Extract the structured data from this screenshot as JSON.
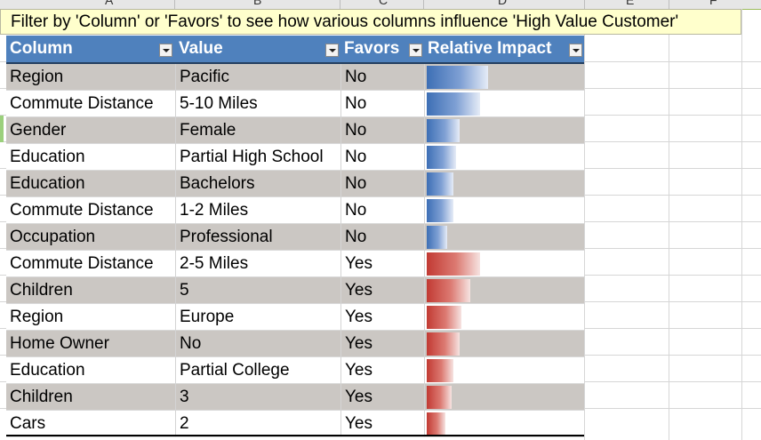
{
  "banner": {
    "text": "Filter by 'Column' or 'Favors' to see how various columns influence 'High Value Customer'"
  },
  "column_letters": [
    "A",
    "B",
    "C",
    "D",
    "E",
    "F"
  ],
  "table": {
    "headers": [
      "Column",
      "Value",
      "Favors",
      "Relative Impact"
    ],
    "rows": [
      {
        "column": "Region",
        "value": "Pacific",
        "favors": "No",
        "impact": 0.39
      },
      {
        "column": "Commute Distance",
        "value": "5-10 Miles",
        "favors": "No",
        "impact": 0.34
      },
      {
        "column": "Gender",
        "value": "Female",
        "favors": "No",
        "impact": 0.21
      },
      {
        "column": "Education",
        "value": "Partial High School",
        "favors": "No",
        "impact": 0.19
      },
      {
        "column": "Education",
        "value": "Bachelors",
        "favors": "No",
        "impact": 0.17
      },
      {
        "column": "Commute Distance",
        "value": "1-2 Miles",
        "favors": "No",
        "impact": 0.17
      },
      {
        "column": "Occupation",
        "value": "Professional",
        "favors": "No",
        "impact": 0.13
      },
      {
        "column": "Commute Distance",
        "value": "2-5 Miles",
        "favors": "Yes",
        "impact": 0.34
      },
      {
        "column": "Children",
        "value": "5",
        "favors": "Yes",
        "impact": 0.28
      },
      {
        "column": "Region",
        "value": "Europe",
        "favors": "Yes",
        "impact": 0.22
      },
      {
        "column": "Home Owner",
        "value": "No",
        "favors": "Yes",
        "impact": 0.21
      },
      {
        "column": "Education",
        "value": "Partial College",
        "favors": "Yes",
        "impact": 0.17
      },
      {
        "column": "Children",
        "value": "3",
        "favors": "Yes",
        "impact": 0.16
      },
      {
        "column": "Cars",
        "value": "2",
        "favors": "Yes",
        "impact": 0.12
      }
    ]
  },
  "colors": {
    "header_bg": "#4f81bd",
    "row_alt": "#cbc7c3",
    "banner_bg": "#ffffcc",
    "bar_no": "#3d6fb5",
    "bar_yes": "#c23a33"
  }
}
